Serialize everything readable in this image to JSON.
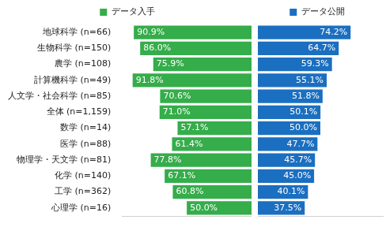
{
  "chart_data": {
    "type": "bar",
    "orientation": "horizontal",
    "categories": [
      "地球科学 (n=66)",
      "生物科学 (n=150)",
      "農学 (n=108)",
      "計算機科学 (n=49)",
      "人文学・社会科学 (n=85)",
      "全体 (n=1,159)",
      "数学 (n=14)",
      "医学 (n=88)",
      "物理学・天文学 (n=81)",
      "化学 (n=140)",
      "工学 (n=362)",
      "心理学 (n=16)"
    ],
    "series": [
      {
        "name": "データ入手",
        "color": "#35ad4a",
        "values": [
          90.9,
          86.0,
          75.9,
          91.8,
          70.6,
          71.0,
          57.1,
          61.4,
          77.8,
          67.1,
          60.8,
          50.0
        ],
        "value_labels": [
          "90.9%",
          "86.0%",
          "75.9%",
          "91.8%",
          "70.6%",
          "71.0%",
          "57.1%",
          "61.4%",
          "77.8%",
          "67.1%",
          "60.8%",
          "50.0%"
        ]
      },
      {
        "name": "データ公開",
        "color": "#1b6fc0",
        "values": [
          74.2,
          64.7,
          59.3,
          55.1,
          51.8,
          50.1,
          50.0,
          47.7,
          45.7,
          45.0,
          40.1,
          37.5
        ],
        "value_labels": [
          "74.2%",
          "64.7%",
          "59.3%",
          "55.1%",
          "51.8%",
          "50.1%",
          "50.0%",
          "47.7%",
          "45.7%",
          "45.0%",
          "40.1%",
          "37.5%"
        ]
      }
    ],
    "xlim": [
      0,
      100
    ],
    "grid": false,
    "legend": "top",
    "data_labels": true,
    "tick_labels": "y"
  }
}
